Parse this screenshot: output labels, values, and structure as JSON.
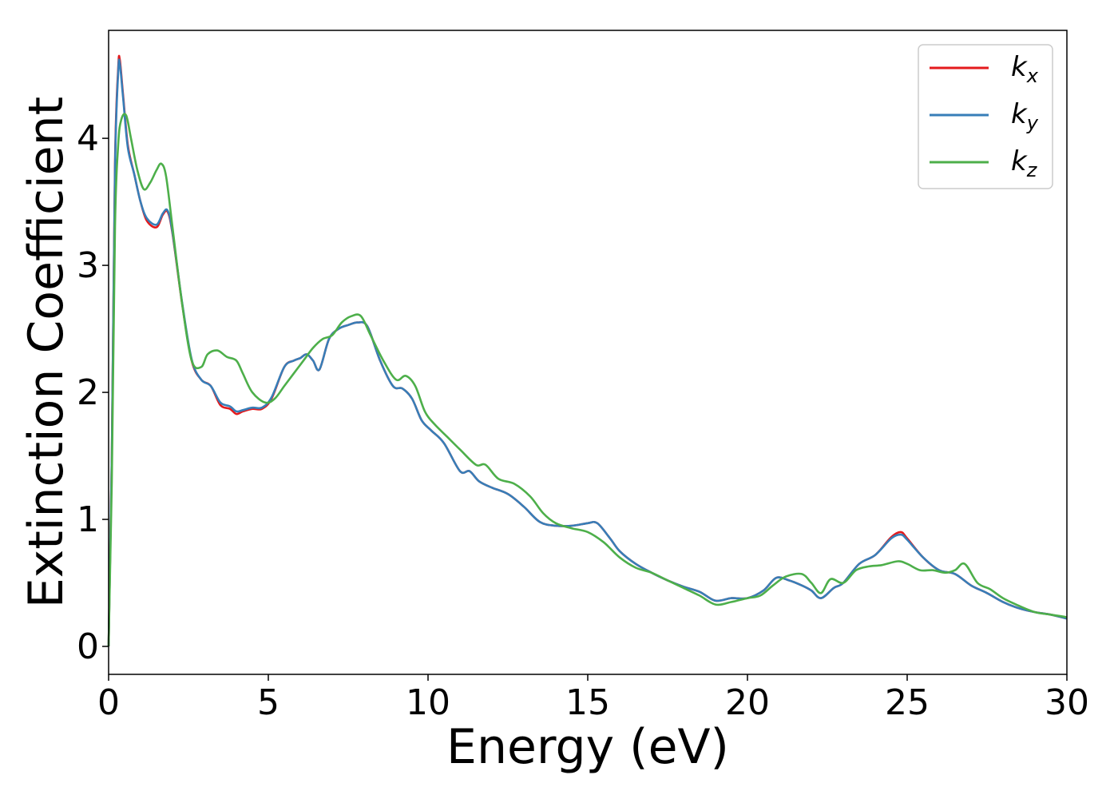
{
  "chart_data": {
    "type": "line",
    "title": "",
    "xlabel": "Energy (eV)",
    "ylabel": "Extinction Coefficient",
    "xlim": [
      0,
      30
    ],
    "ylim": [
      -0.22,
      4.85
    ],
    "xticks": [
      0,
      5,
      10,
      15,
      20,
      25,
      30
    ],
    "yticks": [
      0,
      1,
      2,
      3,
      4
    ],
    "xtick_labels": [
      "0",
      "5",
      "10",
      "15",
      "20",
      "25",
      "30"
    ],
    "ytick_labels": [
      "0",
      "1",
      "2",
      "3",
      "4"
    ],
    "grid": false,
    "legend_position": "top-right",
    "series": [
      {
        "name": "k_x",
        "label_main": "k",
        "label_sub": "x",
        "color": "#e41a1c",
        "x": [
          0,
          0.1,
          0.2,
          0.3,
          0.35,
          0.45,
          0.6,
          0.8,
          1.0,
          1.2,
          1.5,
          1.7,
          1.85,
          2.0,
          2.3,
          2.6,
          2.9,
          3.2,
          3.5,
          3.8,
          4.0,
          4.2,
          4.5,
          4.8,
          5.1,
          5.5,
          5.8,
          6.0,
          6.2,
          6.4,
          6.6,
          6.9,
          7.2,
          7.5,
          7.8,
          8.1,
          8.5,
          8.9,
          9.2,
          9.5,
          9.8,
          10.1,
          10.5,
          11.0,
          11.3,
          11.6,
          12.0,
          12.5,
          13.0,
          13.5,
          14.0,
          14.5,
          15.0,
          15.3,
          15.7,
          16.0,
          16.5,
          17.0,
          17.5,
          18.0,
          18.5,
          19.0,
          19.5,
          20.0,
          20.5,
          20.9,
          21.3,
          21.7,
          22.0,
          22.3,
          22.7,
          23.0,
          23.5,
          24.0,
          24.5,
          24.8,
          25.0,
          25.5,
          26.0,
          26.5,
          27.0,
          27.5,
          28.0,
          28.5,
          29.0,
          29.5,
          30.0
        ],
        "y": [
          0.0,
          1.5,
          3.8,
          4.55,
          4.62,
          4.35,
          3.95,
          3.72,
          3.5,
          3.35,
          3.3,
          3.4,
          3.42,
          3.25,
          2.7,
          2.25,
          2.1,
          2.05,
          1.9,
          1.87,
          1.83,
          1.85,
          1.87,
          1.87,
          1.95,
          2.2,
          2.25,
          2.27,
          2.3,
          2.25,
          2.18,
          2.42,
          2.5,
          2.53,
          2.55,
          2.52,
          2.25,
          2.05,
          2.03,
          1.95,
          1.78,
          1.7,
          1.6,
          1.38,
          1.38,
          1.3,
          1.25,
          1.2,
          1.1,
          0.98,
          0.95,
          0.95,
          0.97,
          0.97,
          0.85,
          0.75,
          0.65,
          0.58,
          0.52,
          0.47,
          0.43,
          0.36,
          0.38,
          0.38,
          0.44,
          0.54,
          0.52,
          0.48,
          0.44,
          0.38,
          0.46,
          0.5,
          0.65,
          0.72,
          0.86,
          0.9,
          0.85,
          0.7,
          0.6,
          0.57,
          0.48,
          0.42,
          0.35,
          0.3,
          0.27,
          0.25,
          0.22
        ]
      },
      {
        "name": "k_y",
        "label_main": "k",
        "label_sub": "y",
        "color": "#377eb8",
        "x": [
          0,
          0.1,
          0.2,
          0.3,
          0.35,
          0.45,
          0.6,
          0.8,
          1.0,
          1.2,
          1.5,
          1.7,
          1.85,
          2.0,
          2.3,
          2.6,
          2.9,
          3.2,
          3.5,
          3.8,
          4.0,
          4.2,
          4.5,
          4.8,
          5.1,
          5.5,
          5.8,
          6.0,
          6.2,
          6.4,
          6.6,
          6.9,
          7.2,
          7.5,
          7.8,
          8.1,
          8.5,
          8.9,
          9.2,
          9.5,
          9.8,
          10.1,
          10.5,
          11.0,
          11.3,
          11.6,
          12.0,
          12.5,
          13.0,
          13.5,
          14.0,
          14.5,
          15.0,
          15.3,
          15.7,
          16.0,
          16.5,
          17.0,
          17.5,
          18.0,
          18.5,
          19.0,
          19.5,
          20.0,
          20.5,
          20.9,
          21.3,
          21.7,
          22.0,
          22.3,
          22.7,
          23.0,
          23.5,
          24.0,
          24.5,
          24.8,
          25.0,
          25.5,
          26.0,
          26.5,
          27.0,
          27.5,
          28.0,
          28.5,
          29.0,
          29.5,
          30.0
        ],
        "y": [
          0.0,
          1.5,
          3.75,
          4.52,
          4.59,
          4.33,
          3.93,
          3.72,
          3.5,
          3.37,
          3.32,
          3.41,
          3.43,
          3.26,
          2.71,
          2.26,
          2.1,
          2.05,
          1.92,
          1.89,
          1.85,
          1.86,
          1.88,
          1.88,
          1.96,
          2.2,
          2.25,
          2.27,
          2.3,
          2.25,
          2.18,
          2.42,
          2.5,
          2.53,
          2.55,
          2.52,
          2.25,
          2.05,
          2.03,
          1.95,
          1.78,
          1.7,
          1.6,
          1.38,
          1.38,
          1.3,
          1.25,
          1.2,
          1.1,
          0.98,
          0.95,
          0.95,
          0.97,
          0.97,
          0.85,
          0.75,
          0.65,
          0.58,
          0.52,
          0.47,
          0.43,
          0.36,
          0.38,
          0.38,
          0.44,
          0.54,
          0.52,
          0.48,
          0.44,
          0.38,
          0.46,
          0.5,
          0.65,
          0.72,
          0.85,
          0.88,
          0.84,
          0.7,
          0.6,
          0.57,
          0.48,
          0.42,
          0.35,
          0.3,
          0.27,
          0.25,
          0.22
        ]
      },
      {
        "name": "k_z",
        "label_main": "k",
        "label_sub": "z",
        "color": "#4daf4a",
        "x": [
          0,
          0.1,
          0.2,
          0.3,
          0.4,
          0.55,
          0.7,
          0.9,
          1.1,
          1.3,
          1.5,
          1.65,
          1.8,
          2.0,
          2.3,
          2.6,
          2.9,
          3.1,
          3.4,
          3.7,
          4.0,
          4.2,
          4.5,
          4.9,
          5.2,
          5.5,
          5.8,
          6.1,
          6.4,
          6.7,
          7.0,
          7.3,
          7.6,
          7.9,
          8.2,
          8.6,
          9.0,
          9.3,
          9.6,
          9.9,
          10.2,
          10.6,
          11.0,
          11.5,
          11.8,
          12.2,
          12.7,
          13.2,
          13.6,
          14.0,
          14.5,
          15.0,
          15.5,
          16.0,
          16.5,
          17.0,
          17.5,
          18.0,
          18.5,
          19.0,
          19.5,
          20.0,
          20.4,
          20.8,
          21.2,
          21.7,
          22.0,
          22.3,
          22.6,
          23.0,
          23.4,
          23.8,
          24.2,
          24.7,
          25.0,
          25.4,
          25.8,
          26.2,
          26.5,
          26.8,
          27.2,
          27.6,
          28.0,
          28.5,
          29.0,
          29.5,
          30.0
        ],
        "y": [
          0.0,
          1.3,
          3.3,
          3.95,
          4.15,
          4.18,
          4.0,
          3.75,
          3.6,
          3.65,
          3.75,
          3.8,
          3.7,
          3.3,
          2.7,
          2.25,
          2.2,
          2.3,
          2.33,
          2.28,
          2.25,
          2.15,
          2.0,
          1.92,
          1.95,
          2.05,
          2.15,
          2.25,
          2.35,
          2.42,
          2.45,
          2.55,
          2.6,
          2.6,
          2.45,
          2.25,
          2.1,
          2.13,
          2.05,
          1.85,
          1.75,
          1.65,
          1.55,
          1.43,
          1.43,
          1.32,
          1.28,
          1.18,
          1.05,
          0.97,
          0.93,
          0.9,
          0.82,
          0.7,
          0.62,
          0.58,
          0.52,
          0.46,
          0.4,
          0.33,
          0.35,
          0.38,
          0.4,
          0.48,
          0.55,
          0.57,
          0.5,
          0.42,
          0.53,
          0.5,
          0.6,
          0.63,
          0.64,
          0.67,
          0.65,
          0.6,
          0.6,
          0.58,
          0.6,
          0.65,
          0.5,
          0.45,
          0.38,
          0.32,
          0.27,
          0.25,
          0.23
        ]
      }
    ]
  }
}
